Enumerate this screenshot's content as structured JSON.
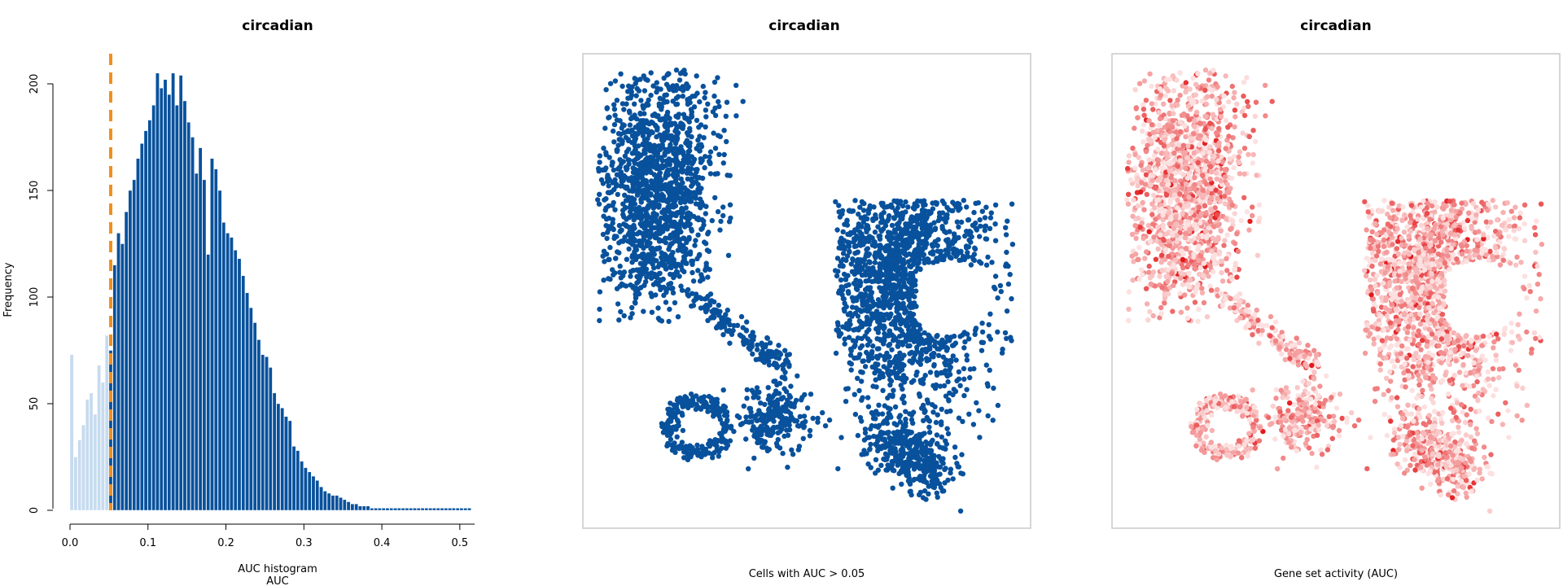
{
  "chart_data": [
    {
      "type": "bar",
      "title": "circadian",
      "xlabel": "AUC histogram",
      "xlabel2": "AUC",
      "ylabel": "Frequency",
      "xlim": [
        0,
        0.52
      ],
      "ylim": [
        0,
        210
      ],
      "xticks": [
        "0.0",
        "0.1",
        "0.2",
        "0.3",
        "0.4",
        "0.5"
      ],
      "yticks": [
        "0",
        "50",
        "100",
        "150",
        "200"
      ],
      "threshold": 0.05,
      "colors": {
        "below": "#c6dbef",
        "above": "#08519c",
        "threshold": "#f28e1c"
      },
      "bin_width": 0.005,
      "bin_start": 0.0,
      "values": [
        73,
        25,
        33,
        40,
        52,
        55,
        45,
        68,
        60,
        82,
        75,
        115,
        130,
        125,
        140,
        150,
        155,
        165,
        172,
        178,
        183,
        190,
        205,
        198,
        202,
        195,
        205,
        190,
        204,
        192,
        182,
        175,
        158,
        170,
        155,
        120,
        165,
        160,
        150,
        135,
        130,
        128,
        122,
        118,
        110,
        102,
        95,
        88,
        80,
        73,
        72,
        67,
        55,
        50,
        48,
        44,
        42,
        30,
        28,
        23,
        20,
        18,
        16,
        14,
        11,
        9,
        8,
        7,
        7,
        6,
        5,
        4,
        3,
        3,
        2,
        2,
        2,
        1,
        1,
        1,
        1,
        1,
        1,
        1,
        1,
        1,
        1,
        1,
        1,
        1,
        1,
        1,
        1,
        1,
        1,
        1,
        1,
        1,
        1,
        1,
        1,
        1,
        1
      ]
    },
    {
      "type": "scatter",
      "title": "circadian",
      "xlabel": "Cells with AUC > 0.05",
      "colors": {
        "points": "#08519c"
      }
    },
    {
      "type": "scatter",
      "title": "circadian",
      "xlabel": "Gene set activity (AUC)",
      "colors": {
        "low": "#fde0e0",
        "high": "#e31a1c"
      }
    }
  ]
}
